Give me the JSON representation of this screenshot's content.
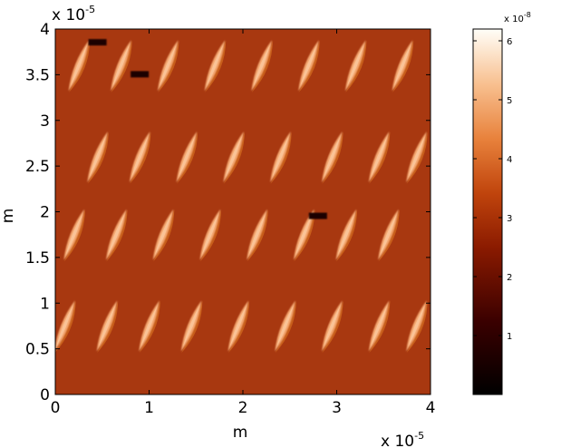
{
  "chart_data": {
    "type": "heatmap",
    "title": "",
    "xlabel": "m",
    "ylabel": "m",
    "x_exponent_label": "x 10",
    "x_exponent": "-5",
    "y_exponent_label": "x 10",
    "y_exponent": "-5",
    "xlim": [
      0,
      4e-05
    ],
    "ylim": [
      0,
      4e-05
    ],
    "x_ticks": [
      {
        "value": 0,
        "label": "0"
      },
      {
        "value": 1e-05,
        "label": "1"
      },
      {
        "value": 2e-05,
        "label": "2"
      },
      {
        "value": 3e-05,
        "label": "3"
      },
      {
        "value": 4e-05,
        "label": "4"
      }
    ],
    "y_ticks": [
      {
        "value": 0,
        "label": "0"
      },
      {
        "value": 5e-06,
        "label": "0.5"
      },
      {
        "value": 1e-05,
        "label": "1"
      },
      {
        "value": 1.5e-05,
        "label": "1.5"
      },
      {
        "value": 2e-05,
        "label": "2"
      },
      {
        "value": 2.5e-05,
        "label": "2.5"
      },
      {
        "value": 3e-05,
        "label": "3"
      },
      {
        "value": 3.5e-05,
        "label": "3.5"
      },
      {
        "value": 4e-05,
        "label": "4"
      }
    ],
    "colorbar": {
      "colormap": "afmhot",
      "range": [
        0,
        6.2e-08
      ],
      "exponent_label": "x 10",
      "exponent": "-8",
      "ticks": [
        {
          "value": 1e-08,
          "label": "1"
        },
        {
          "value": 2e-08,
          "label": "2"
        },
        {
          "value": 3e-08,
          "label": "3"
        },
        {
          "value": 4e-08,
          "label": "4"
        },
        {
          "value": 5e-08,
          "label": "5"
        },
        {
          "value": 6e-08,
          "label": "6"
        }
      ]
    },
    "background_value": 2.9e-08,
    "feature_rows": [
      {
        "y_center": 3.6e-05,
        "x_centers": [
          2.5e-06,
          7e-06,
          1.2e-05,
          1.7e-05,
          2.2e-05,
          2.7e-05,
          3.2e-05,
          3.7e-05
        ]
      },
      {
        "y_center": 2.6e-05,
        "x_centers": [
          4.5e-06,
          9e-06,
          1.4e-05,
          1.9e-05,
          2.4e-05,
          2.95e-05,
          3.45e-05,
          3.85e-05
        ]
      },
      {
        "y_center": 1.75e-05,
        "x_centers": [
          2e-06,
          6.5e-06,
          1.15e-05,
          1.65e-05,
          2.15e-05,
          2.65e-05,
          3.1e-05,
          3.55e-05
        ]
      },
      {
        "y_center": 7.5e-06,
        "x_centers": [
          1e-06,
          5.5e-06,
          1e-05,
          1.45e-05,
          1.95e-05,
          2.45e-05,
          2.95e-05,
          3.45e-05,
          3.85e-05
        ]
      }
    ],
    "feature_value": 5.1e-08,
    "dark_defects": [
      {
        "x": 9e-06,
        "y": 3.5e-05,
        "value": 4e-09
      },
      {
        "x": 2.8e-05,
        "y": 1.95e-05,
        "value": 4e-09
      },
      {
        "x": 4.5e-06,
        "y": 3.85e-05,
        "value": 8e-09
      }
    ]
  }
}
